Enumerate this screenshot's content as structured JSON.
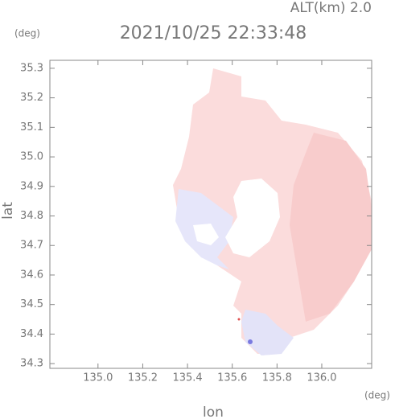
{
  "chart_data": {
    "type": "field",
    "title": "2021/10/25 22:33:48",
    "annotation": "ALT(km) 2.0",
    "xlabel": "lon",
    "ylabel": "lat",
    "x_unit": "(deg)",
    "y_unit": "(deg)",
    "xlim": [
      134.785,
      136.223
    ],
    "ylim": [
      34.284,
      35.327
    ],
    "xticks": [
      {
        "value": 135,
        "label": "135.0"
      },
      135.2,
      135.4,
      135.6,
      135.8,
      {
        "value": 136,
        "label": "136.0"
      }
    ],
    "yticks": [
      34.3,
      34.4,
      34.5,
      34.6,
      34.7,
      34.8,
      34.9,
      {
        "value": 35,
        "label": "35.0"
      },
      35.1,
      35.2,
      35.3
    ]
  }
}
